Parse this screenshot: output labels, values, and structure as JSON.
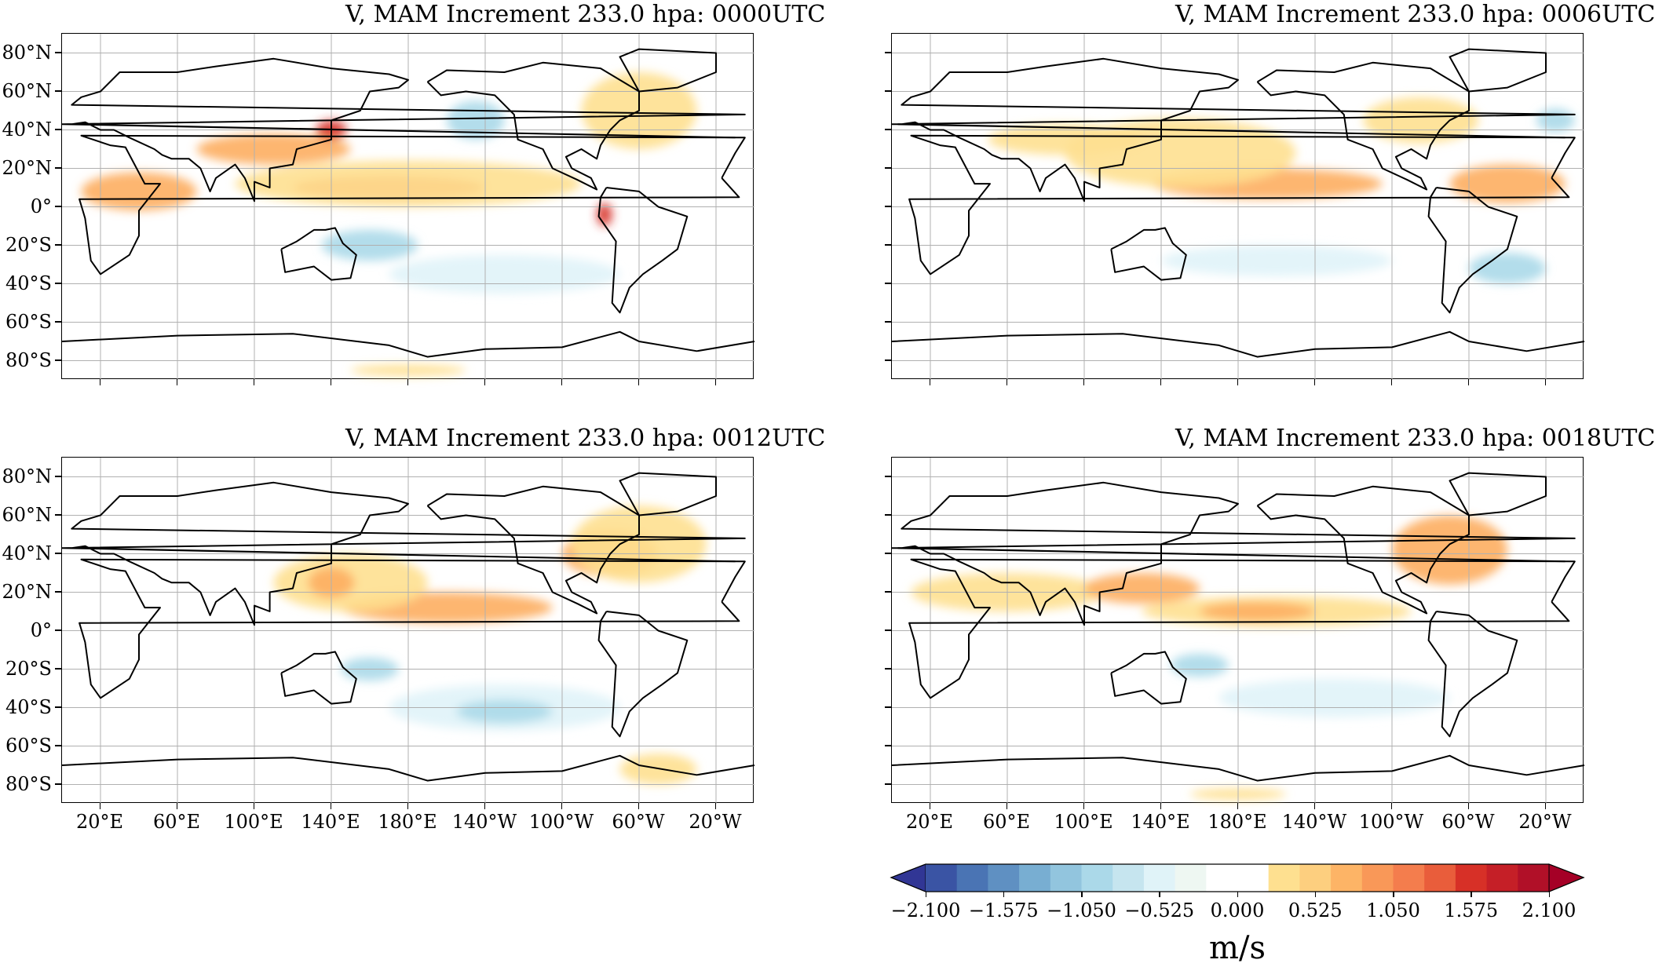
{
  "panels": [
    {
      "title": "V, MAM Increment 233.0 hpa: 0000UTC",
      "show_lat_labels": true,
      "show_lon_labels": false
    },
    {
      "title": "V, MAM Increment 233.0 hpa: 0006UTC",
      "show_lat_labels": false,
      "show_lon_labels": false
    },
    {
      "title": "V, MAM Increment 233.0 hpa: 0012UTC",
      "show_lat_labels": true,
      "show_lon_labels": true
    },
    {
      "title": "V, MAM Increment 233.0 hpa: 0018UTC",
      "show_lat_labels": false,
      "show_lon_labels": true
    }
  ],
  "lat_labels": [
    "80°N",
    "60°N",
    "40°N",
    "20°N",
    "0°",
    "20°S",
    "40°S",
    "60°S",
    "80°S"
  ],
  "lat_values": [
    80,
    60,
    40,
    20,
    0,
    -20,
    -40,
    -60,
    -80
  ],
  "lon_labels": [
    "20°E",
    "60°E",
    "100°E",
    "140°E",
    "180°E",
    "140°W",
    "100°W",
    "60°W",
    "20°W"
  ],
  "lon_values": [
    20,
    60,
    100,
    140,
    180,
    220,
    260,
    300,
    340
  ],
  "map_extent": {
    "lon_min": 0,
    "lon_max": 360,
    "lat_min": -90,
    "lat_max": 90
  },
  "colorbar": {
    "units": "m/s",
    "tick_labels": [
      "−2.100",
      "−1.575",
      "−1.050",
      "−0.525",
      "0.000",
      "0.525",
      "1.050",
      "1.575",
      "2.100"
    ],
    "range": [
      -2.1,
      2.1
    ],
    "colors": [
      "#313695",
      "#3a54a4",
      "#4a74b4",
      "#5f90c2",
      "#78aed2",
      "#92c5de",
      "#abd9e9",
      "#c6e5ef",
      "#e0f3f8",
      "#eef7f2",
      "#ffffff",
      "#ffffff",
      "#fee090",
      "#fdcf7f",
      "#fdb466",
      "#f99858",
      "#f47d4d",
      "#e95d3b",
      "#d73027",
      "#c51f27",
      "#b11028",
      "#a50026"
    ],
    "extend": "both"
  },
  "feature_colors": {
    "positive_light": "#fee090",
    "positive_mid": "#fdae61",
    "positive_strong": "#f46d43",
    "positive_max": "#d73027",
    "negative_light": "#e0f3f8",
    "negative_mid": "#abd9e9",
    "negative_strong": "#74add1",
    "coast": "#000000",
    "grid": "#b0b0b0"
  },
  "features": [
    [
      {
        "lon": 170,
        "lat": 10,
        "rx": 50,
        "ry": 6,
        "level": "positive_strong"
      },
      {
        "lon": 180,
        "lat": 12,
        "rx": 90,
        "ry": 12,
        "level": "positive_light"
      },
      {
        "lon": 110,
        "lat": 30,
        "rx": 40,
        "ry": 8,
        "level": "positive_mid"
      },
      {
        "lon": 140,
        "lat": 40,
        "rx": 8,
        "ry": 5,
        "level": "positive_max"
      },
      {
        "lon": 40,
        "lat": 8,
        "rx": 30,
        "ry": 10,
        "level": "positive_mid"
      },
      {
        "lon": 300,
        "lat": 50,
        "rx": 30,
        "ry": 20,
        "level": "positive_light"
      },
      {
        "lon": 282,
        "lat": -4,
        "rx": 4,
        "ry": 6,
        "level": "positive_max"
      },
      {
        "lon": 160,
        "lat": -20,
        "rx": 25,
        "ry": 8,
        "level": "negative_mid"
      },
      {
        "lon": 230,
        "lat": -35,
        "rx": 60,
        "ry": 10,
        "level": "negative_light"
      },
      {
        "lon": 215,
        "lat": 45,
        "rx": 15,
        "ry": 10,
        "level": "negative_mid"
      },
      {
        "lon": 180,
        "lat": -85,
        "rx": 30,
        "ry": 3,
        "level": "positive_light"
      }
    ],
    [
      {
        "lon": 195,
        "lat": 12,
        "rx": 60,
        "ry": 8,
        "level": "positive_mid"
      },
      {
        "lon": 150,
        "lat": 28,
        "rx": 60,
        "ry": 18,
        "level": "positive_light"
      },
      {
        "lon": 320,
        "lat": 12,
        "rx": 30,
        "ry": 10,
        "level": "positive_mid"
      },
      {
        "lon": 90,
        "lat": 35,
        "rx": 40,
        "ry": 8,
        "level": "positive_light"
      },
      {
        "lon": 200,
        "lat": -28,
        "rx": 60,
        "ry": 8,
        "level": "negative_light"
      },
      {
        "lon": 320,
        "lat": -32,
        "rx": 20,
        "ry": 8,
        "level": "negative_mid"
      },
      {
        "lon": 345,
        "lat": 45,
        "rx": 10,
        "ry": 6,
        "level": "negative_mid"
      },
      {
        "lon": 275,
        "lat": 45,
        "rx": 30,
        "ry": 12,
        "level": "positive_light"
      }
    ],
    [
      {
        "lon": 200,
        "lat": 12,
        "rx": 55,
        "ry": 8,
        "level": "positive_mid"
      },
      {
        "lon": 150,
        "lat": 25,
        "rx": 40,
        "ry": 15,
        "level": "positive_light"
      },
      {
        "lon": 140,
        "lat": 25,
        "rx": 12,
        "ry": 8,
        "level": "positive_mid"
      },
      {
        "lon": 285,
        "lat": 40,
        "rx": 25,
        "ry": 12,
        "level": "positive_mid"
      },
      {
        "lon": 300,
        "lat": 45,
        "rx": 35,
        "ry": 20,
        "level": "positive_light"
      },
      {
        "lon": 230,
        "lat": -40,
        "rx": 60,
        "ry": 12,
        "level": "negative_light"
      },
      {
        "lon": 230,
        "lat": -42,
        "rx": 25,
        "ry": 6,
        "level": "negative_mid"
      },
      {
        "lon": 160,
        "lat": -20,
        "rx": 15,
        "ry": 6,
        "level": "negative_mid"
      },
      {
        "lon": 310,
        "lat": -72,
        "rx": 20,
        "ry": 8,
        "level": "positive_light"
      }
    ],
    [
      {
        "lon": 200,
        "lat": 10,
        "rx": 70,
        "ry": 8,
        "level": "positive_light"
      },
      {
        "lon": 190,
        "lat": 10,
        "rx": 30,
        "ry": 5,
        "level": "positive_mid"
      },
      {
        "lon": 290,
        "lat": 42,
        "rx": 30,
        "ry": 18,
        "level": "positive_mid"
      },
      {
        "lon": 60,
        "lat": 20,
        "rx": 50,
        "ry": 10,
        "level": "positive_light"
      },
      {
        "lon": 130,
        "lat": 22,
        "rx": 30,
        "ry": 8,
        "level": "positive_mid"
      },
      {
        "lon": 230,
        "lat": -35,
        "rx": 60,
        "ry": 10,
        "level": "negative_light"
      },
      {
        "lon": 160,
        "lat": -18,
        "rx": 15,
        "ry": 6,
        "level": "negative_mid"
      },
      {
        "lon": 180,
        "lat": -85,
        "rx": 25,
        "ry": 3,
        "level": "positive_light"
      }
    ]
  ]
}
